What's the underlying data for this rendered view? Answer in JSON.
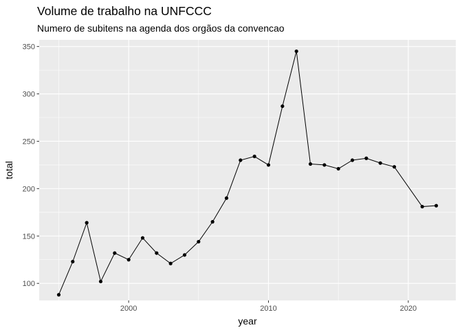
{
  "chart_data": {
    "type": "line",
    "title": "Volume de trabalho na UNFCCC",
    "subtitle": "Numero de subitens na agenda dos orgãos da convencao",
    "xlabel": "year",
    "ylabel": "total",
    "xlim": [
      1993.6,
      2023.4
    ],
    "ylim": [
      82,
      357
    ],
    "x_ticks": [
      2000,
      2010,
      2020
    ],
    "y_ticks": [
      100,
      150,
      200,
      250,
      300,
      350
    ],
    "grid": true,
    "colors": {
      "panel": "#ebebeb",
      "grid": "#ffffff",
      "series": "#000000"
    },
    "series": [
      {
        "x": [
          1995,
          1996,
          1997,
          1998,
          1999,
          2000,
          2001,
          2002,
          2003,
          2004,
          2005,
          2006,
          2007,
          2008,
          2009,
          2010,
          2011,
          2012,
          2013,
          2014,
          2015,
          2016,
          2017,
          2018,
          2019,
          2021,
          2022
        ],
        "y": [
          88,
          123,
          164,
          102,
          132,
          125,
          148,
          132,
          121,
          130,
          144,
          165,
          190,
          230,
          234,
          225,
          287,
          345,
          226,
          225,
          221,
          230,
          232,
          227,
          223,
          181,
          182
        ]
      }
    ]
  }
}
